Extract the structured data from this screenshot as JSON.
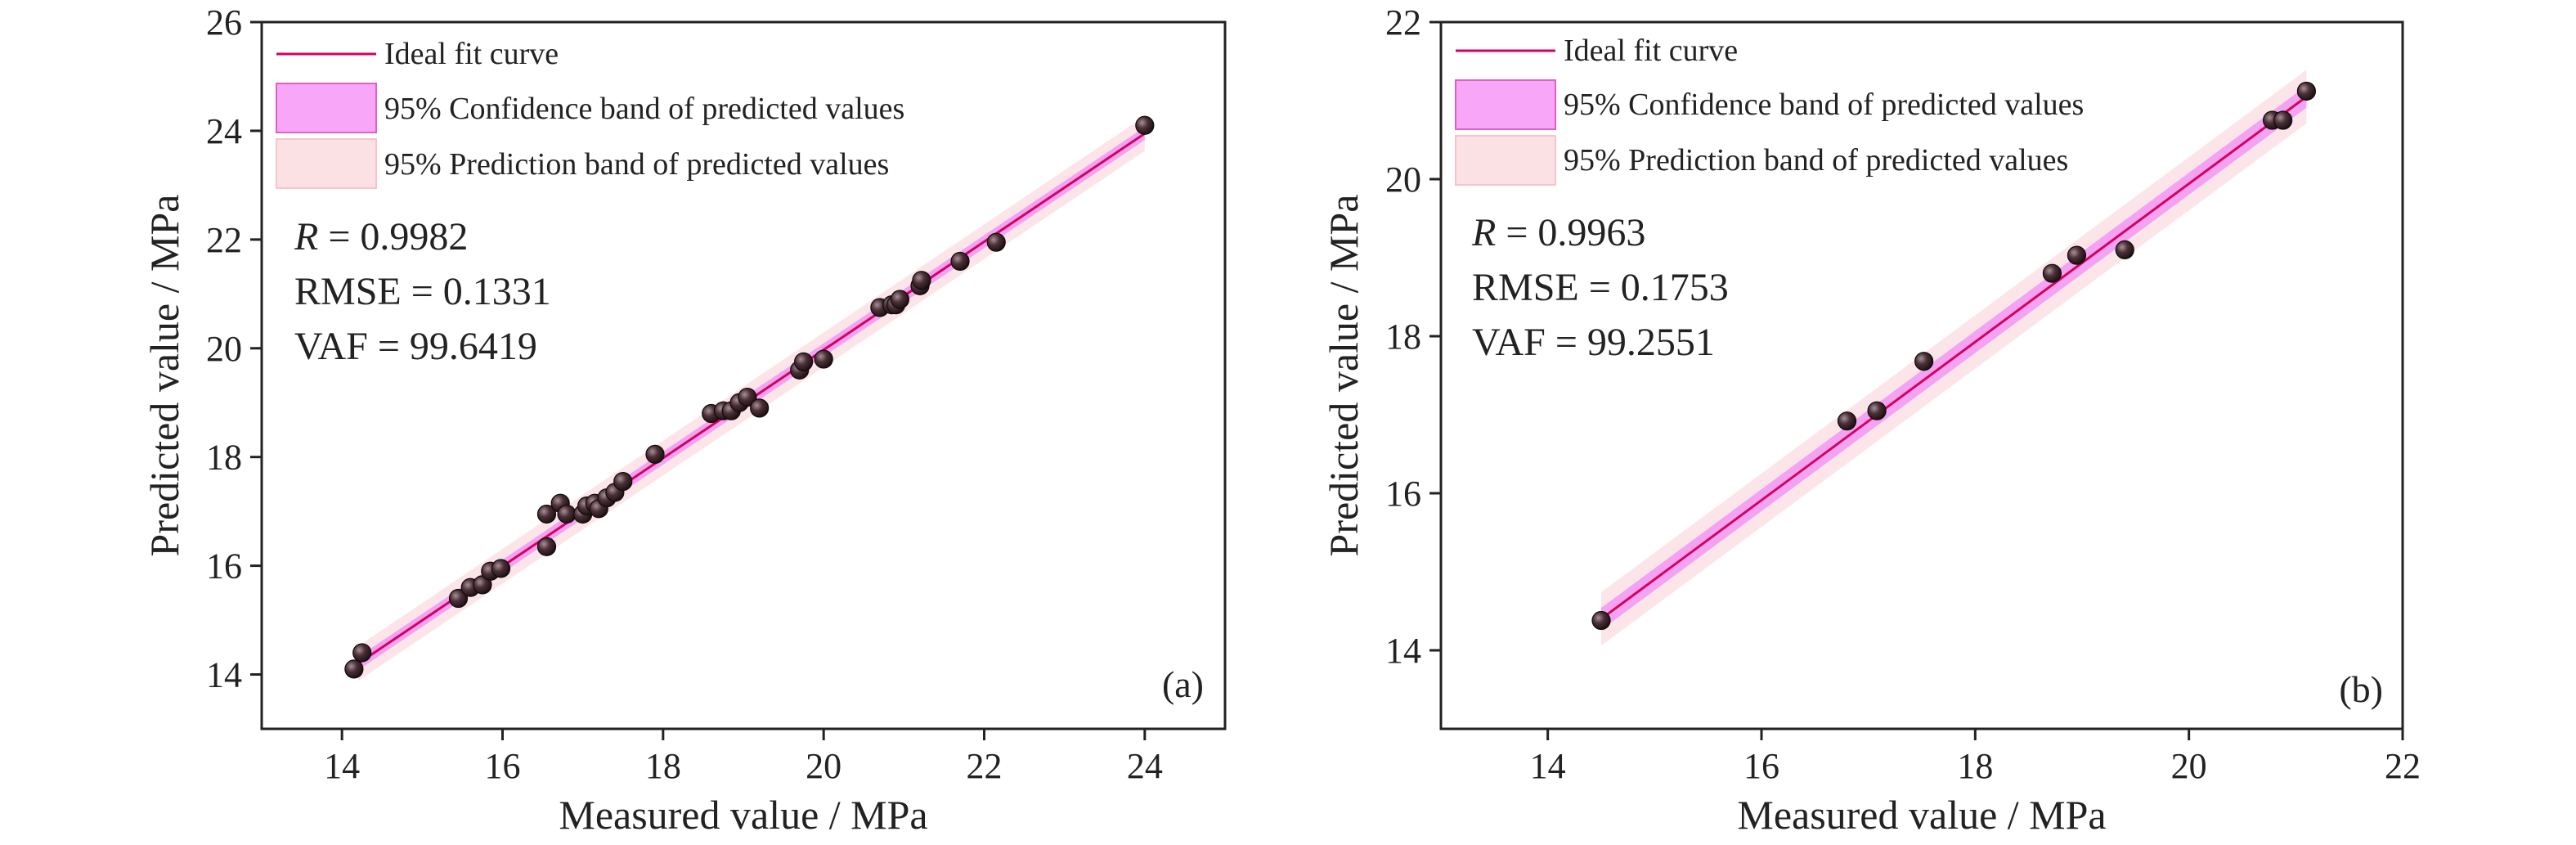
{
  "legend": {
    "fit_label": "Ideal fit curve",
    "confidence_label": "95% Confidence band of predicted values",
    "prediction_label": "95% Prediction band of predicted values"
  },
  "colors": {
    "fit_line": "#d6005f",
    "confidence_band": "#f08cf5",
    "confidence_band_border": "#e060c8",
    "prediction_band": "#fbe0e4",
    "point": "#3a2a2e"
  },
  "chart_data": [
    {
      "type": "scatter",
      "panel_label": "(a)",
      "xlabel": "Measured value / MPa",
      "ylabel": "Predicted value / MPa",
      "xlim": [
        13,
        25
      ],
      "ylim": [
        13,
        26
      ],
      "xticks": [
        14,
        16,
        18,
        20,
        22,
        24
      ],
      "yticks": [
        14,
        16,
        18,
        20,
        22,
        24,
        26
      ],
      "grid": false,
      "legend_position": "top-left",
      "stats": {
        "r_symbol": "R",
        "r_value": " = 0.9982",
        "rmse": "RMSE = 0.1331",
        "vaf": "VAF = 99.6419"
      },
      "fit_line": {
        "x": [
          14.2,
          24.0
        ],
        "y": [
          14.2,
          23.95
        ]
      },
      "confidence_band_halfwidth": 0.12,
      "prediction_band_halfwidth": 0.32,
      "points": [
        [
          14.15,
          14.1
        ],
        [
          14.25,
          14.4
        ],
        [
          15.45,
          15.4
        ],
        [
          15.6,
          15.6
        ],
        [
          15.75,
          15.65
        ],
        [
          15.85,
          15.9
        ],
        [
          15.98,
          15.95
        ],
        [
          16.55,
          16.35
        ],
        [
          16.55,
          16.95
        ],
        [
          16.72,
          17.15
        ],
        [
          16.8,
          16.95
        ],
        [
          17.0,
          16.95
        ],
        [
          17.05,
          17.1
        ],
        [
          17.15,
          17.15
        ],
        [
          17.2,
          17.05
        ],
        [
          17.3,
          17.25
        ],
        [
          17.4,
          17.35
        ],
        [
          17.5,
          17.55
        ],
        [
          17.9,
          18.05
        ],
        [
          18.6,
          18.8
        ],
        [
          18.75,
          18.85
        ],
        [
          18.85,
          18.85
        ],
        [
          18.95,
          19.0
        ],
        [
          19.05,
          19.1
        ],
        [
          19.2,
          18.9
        ],
        [
          19.7,
          19.6
        ],
        [
          19.75,
          19.75
        ],
        [
          20.0,
          19.8
        ],
        [
          20.7,
          20.75
        ],
        [
          20.85,
          20.8
        ],
        [
          20.9,
          20.8
        ],
        [
          20.95,
          20.9
        ],
        [
          21.2,
          21.15
        ],
        [
          21.22,
          21.25
        ],
        [
          21.7,
          21.6
        ],
        [
          22.15,
          21.95
        ],
        [
          24.0,
          24.1
        ]
      ]
    },
    {
      "type": "scatter",
      "panel_label": "(b)",
      "xlabel": "Measured value / MPa",
      "ylabel": "Predicted value / MPa",
      "xlim": [
        13,
        22
      ],
      "ylim": [
        13,
        22
      ],
      "xticks": [
        14,
        16,
        18,
        20,
        22
      ],
      "yticks": [
        14,
        16,
        18,
        20,
        22
      ],
      "grid": false,
      "legend_position": "top-left",
      "stats": {
        "r_symbol": "R",
        "r_value": " = 0.9963",
        "rmse": "RMSE = 0.1753",
        "vaf": "VAF = 99.2551"
      },
      "fit_line": {
        "x": [
          14.5,
          21.1
        ],
        "y": [
          14.4,
          21.05
        ]
      },
      "confidence_band_halfwidth": 0.14,
      "prediction_band_halfwidth": 0.34,
      "points": [
        [
          14.5,
          14.38
        ],
        [
          16.8,
          16.92
        ],
        [
          17.08,
          17.05
        ],
        [
          17.52,
          17.68
        ],
        [
          18.72,
          18.8
        ],
        [
          18.95,
          19.03
        ],
        [
          19.4,
          19.1
        ],
        [
          20.78,
          20.75
        ],
        [
          20.88,
          20.75
        ],
        [
          21.1,
          21.12
        ]
      ]
    }
  ]
}
